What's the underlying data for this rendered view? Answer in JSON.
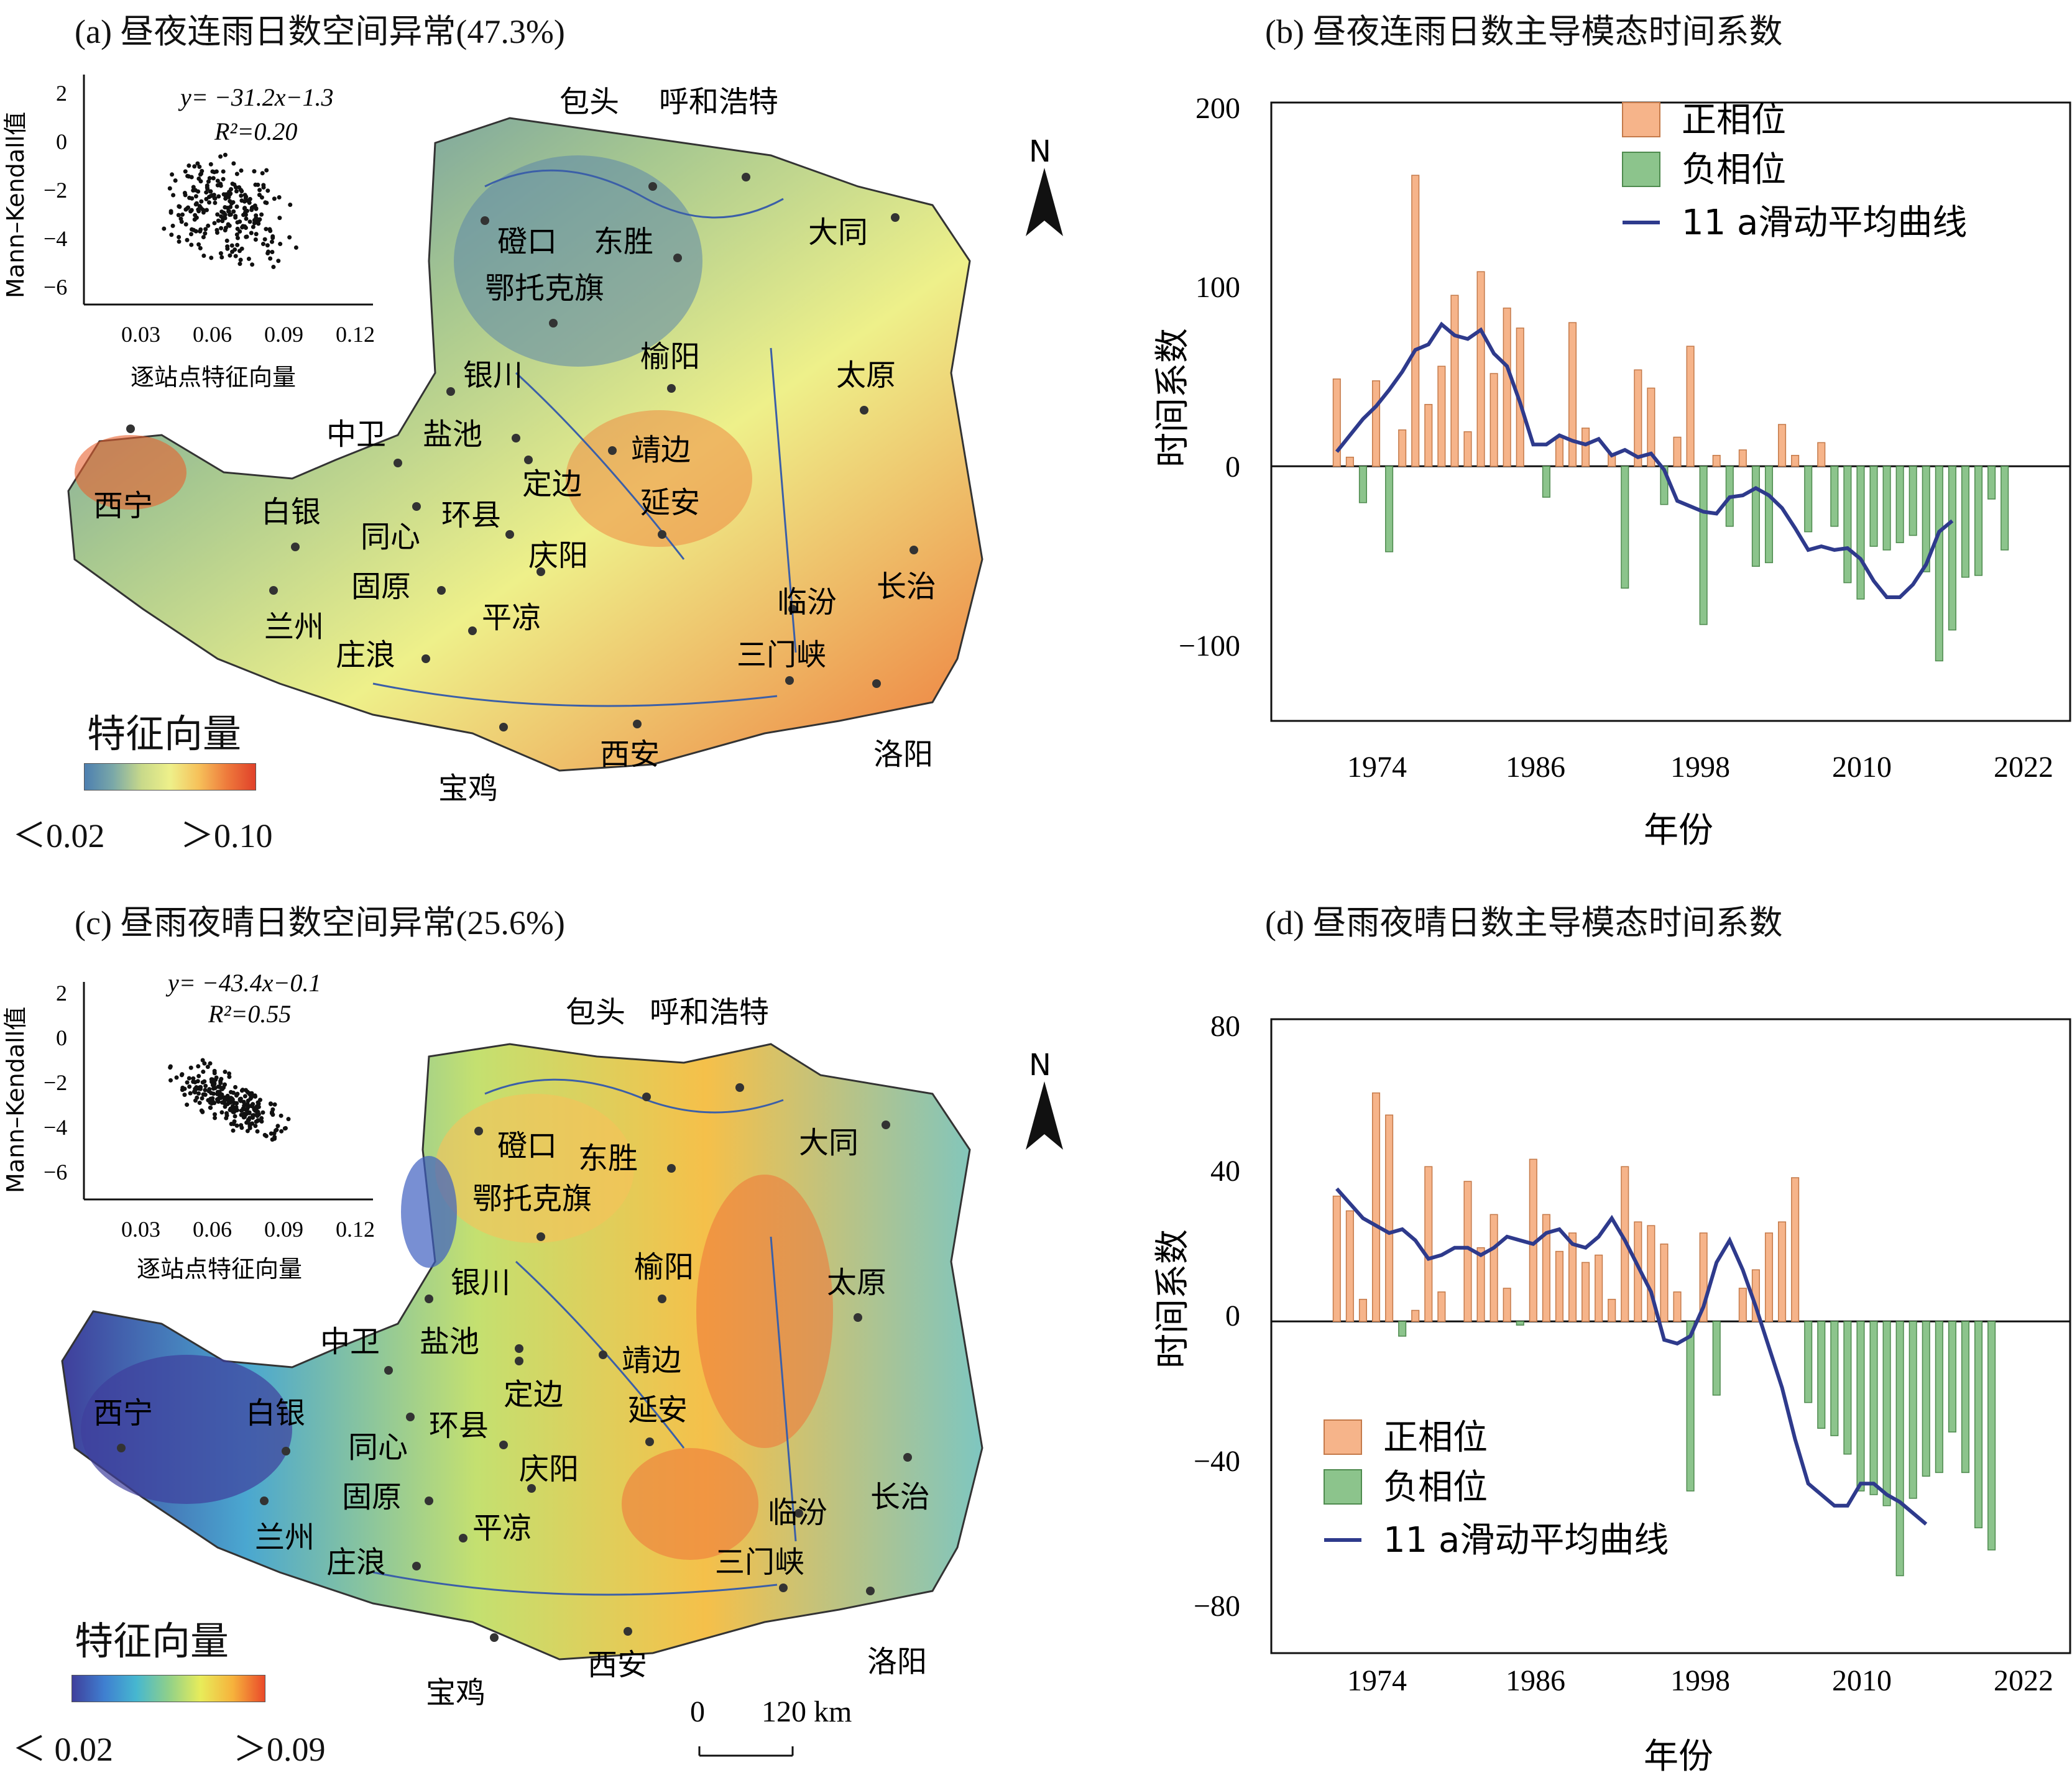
{
  "panels": {
    "a": {
      "title": "(a) 昼夜连雨日数空间异常(47.3%)",
      "colorbar": {
        "title": "特征向量",
        "min_label": "＜0.02",
        "max_label": "＞0.10",
        "colors": [
          "#4d7fb0",
          "#7aa8a8",
          "#c8d98a",
          "#eef08a",
          "#f6c15a",
          "#ee7a3c",
          "#e0412a"
        ]
      },
      "inset": {
        "equation": "y= −31.2x−1.3",
        "r2": "R²=0.20",
        "xlabel": "逐站点特征向量",
        "ylabel": "Mann–Kendall值",
        "xticks": [
          "0.03",
          "0.06",
          "0.09",
          "0.12"
        ],
        "yticks": [
          "2",
          "0",
          "−2",
          "−4",
          "−6"
        ]
      }
    },
    "b": {
      "title": "(b) 昼夜连雨日数主导模态时间系数",
      "xlabel": "年份",
      "ylabel": "时间系数",
      "legend": [
        "正相位",
        "负相位",
        "11 a滑动平均曲线"
      ],
      "yticks": [
        "200",
        "100",
        "0",
        "−100"
      ],
      "xticks": [
        "1974",
        "1986",
        "1998",
        "2010",
        "2022"
      ]
    },
    "c": {
      "title": "(c) 昼雨夜晴日数空间异常(25.6%)",
      "colorbar": {
        "title": "特征向量",
        "min_label": "＜ 0.02",
        "max_label": "＞0.09",
        "colors": [
          "#3f3f9c",
          "#3f7fd0",
          "#46b7d0",
          "#8fd08a",
          "#e8ec5a",
          "#f6b23c",
          "#ea4a2a"
        ]
      },
      "inset": {
        "equation": "y= −43.4x−0.1",
        "r2": "R²=0.55",
        "xlabel": "逐站点特征向量",
        "ylabel": "Mann–Kendall值",
        "xticks": [
          "0.03",
          "0.06",
          "0.09",
          "0.12"
        ],
        "yticks": [
          "2",
          "0",
          "−2",
          "−4",
          "−6"
        ]
      },
      "scale_bar": {
        "zero": "0",
        "label": "120 km"
      }
    },
    "d": {
      "title": "(d) 昼雨夜晴日数主导模态时间系数",
      "xlabel": "年份",
      "ylabel": "时间系数",
      "legend": [
        "正相位",
        "负相位",
        "11 a滑动平均曲线"
      ],
      "yticks": [
        "80",
        "40",
        "0",
        "−40",
        "−80"
      ],
      "xticks": [
        "1974",
        "1986",
        "1998",
        "2010",
        "2022"
      ]
    }
  },
  "north_label": "N",
  "cities": [
    "包头",
    "呼和浩特",
    "磴口",
    "东胜",
    "大同",
    "鄂托克旗",
    "银川",
    "榆阳",
    "太原",
    "中卫",
    "盐池",
    "靖边",
    "定边",
    "西宁",
    "白银",
    "同心",
    "环县",
    "延安",
    "庆阳",
    "长治",
    "固原",
    "兰州",
    "临汾",
    "平凉",
    "庄浪",
    "三门峡",
    "西安",
    "宝鸡",
    "洛阳"
  ],
  "chart_data": [
    {
      "type": "bar",
      "title": "(b) 昼夜连雨日数主导模态时间系数",
      "xlabel": "年份",
      "ylabel": "时间系数",
      "x": [
        1967,
        1968,
        1969,
        1970,
        1971,
        1972,
        1973,
        1974,
        1975,
        1976,
        1977,
        1978,
        1979,
        1980,
        1981,
        1982,
        1983,
        1984,
        1985,
        1986,
        1987,
        1988,
        1989,
        1990,
        1991,
        1992,
        1993,
        1994,
        1995,
        1996,
        1997,
        1998,
        1999,
        2000,
        2001,
        2002,
        2003,
        2004,
        2005,
        2006,
        2007,
        2008,
        2009,
        2010,
        2011,
        2012,
        2013,
        2014,
        2015,
        2016,
        2017,
        2018,
        2019,
        2020,
        2021
      ],
      "ylim": [
        -140,
        200
      ],
      "series": [
        {
          "name": "正相位",
          "color": "#f6b48a",
          "values": [
            48,
            5,
            0,
            47,
            0,
            20,
            160,
            34,
            55,
            94,
            19,
            107,
            51,
            87,
            76,
            0,
            0,
            16,
            79,
            21,
            0,
            7,
            0,
            53,
            43,
            0,
            16,
            66,
            0,
            6,
            0,
            9,
            0,
            0,
            23,
            6,
            0,
            13,
            0,
            0,
            0,
            0,
            0,
            0,
            0,
            0,
            0,
            0,
            0,
            0,
            0,
            0,
            0,
            0,
            0
          ]
        },
        {
          "name": "负相位",
          "color": "#8cc48c",
          "values": [
            0,
            0,
            -20,
            0,
            -47,
            0,
            0,
            0,
            0,
            0,
            0,
            0,
            0,
            0,
            0,
            0,
            -17,
            0,
            0,
            0,
            0,
            0,
            -67,
            0,
            0,
            -21,
            0,
            0,
            -87,
            0,
            -33,
            0,
            -55,
            -53,
            0,
            0,
            -36,
            0,
            -33,
            -64,
            -73,
            -44,
            -46,
            -42,
            -38,
            -58,
            -107,
            -90,
            -61,
            -60,
            -18,
            -46,
            0,
            0,
            0
          ]
        },
        {
          "name": "11 a滑动平均曲线",
          "color": "#2e3a8c",
          "values": [
            8,
            17,
            26,
            33,
            42,
            52,
            64,
            67,
            78,
            72,
            70,
            75,
            62,
            55,
            35,
            12,
            12,
            17,
            14,
            12,
            15,
            6,
            9,
            5,
            7,
            -2,
            -19,
            -22,
            -25,
            -26,
            -17,
            -16,
            -12,
            -16,
            -23,
            -34,
            -46,
            -44,
            -46,
            -45,
            -51,
            -63,
            -72,
            -72,
            -65,
            -54,
            -36,
            -30,
            null,
            null,
            null,
            null,
            null,
            null,
            null
          ]
        }
      ]
    },
    {
      "type": "bar",
      "title": "(d) 昼雨夜晴日数主导模态时间系数",
      "xlabel": "年份",
      "ylabel": "时间系数",
      "x": [
        1967,
        1968,
        1969,
        1970,
        1971,
        1972,
        1973,
        1974,
        1975,
        1976,
        1977,
        1978,
        1979,
        1980,
        1981,
        1982,
        1983,
        1984,
        1985,
        1986,
        1987,
        1988,
        1989,
        1990,
        1991,
        1992,
        1993,
        1994,
        1995,
        1996,
        1997,
        1998,
        1999,
        2000,
        2001,
        2002,
        2003,
        2004,
        2005,
        2006,
        2007,
        2008,
        2009,
        2010,
        2011,
        2012,
        2013,
        2014,
        2015,
        2016,
        2017,
        2018,
        2019,
        2020,
        2021
      ],
      "ylim": [
        -90,
        82
      ],
      "series": [
        {
          "name": "正相位",
          "color": "#f6b48a",
          "values": [
            34,
            30,
            6,
            62,
            56,
            0,
            3,
            42,
            8,
            0,
            38,
            20,
            29,
            9,
            0,
            44,
            29,
            19,
            24,
            16,
            18,
            6,
            42,
            27,
            26,
            21,
            8,
            0,
            24,
            0,
            0,
            9,
            14,
            24,
            27,
            39,
            0,
            0,
            0,
            0,
            0,
            0,
            0,
            0,
            0,
            0,
            0,
            0,
            0,
            0,
            0,
            0,
            0,
            0,
            0
          ]
        },
        {
          "name": "负相位",
          "color": "#8cc48c",
          "values": [
            0,
            0,
            0,
            0,
            0,
            -4,
            0,
            0,
            0,
            0,
            0,
            0,
            0,
            0,
            -1,
            0,
            0,
            0,
            0,
            0,
            0,
            0,
            0,
            0,
            0,
            0,
            0,
            -46,
            0,
            -20,
            0,
            0,
            0,
            0,
            0,
            0,
            -22,
            -29,
            -31,
            -36,
            -46,
            -47,
            -50,
            -69,
            -48,
            -42,
            -41,
            -30,
            -41,
            -56,
            -62,
            0,
            0,
            0,
            0
          ]
        },
        {
          "name": "11 a滑动平均曲线",
          "color": "#2e3a8c",
          "values": [
            36,
            32,
            28,
            26,
            24,
            25,
            22,
            17,
            18,
            20,
            20,
            18,
            20,
            23,
            22,
            21,
            24,
            25,
            21,
            20,
            23,
            28,
            22,
            15,
            8,
            -5,
            -6,
            -4,
            4,
            16,
            22,
            14,
            4,
            -7,
            -18,
            -32,
            -44,
            -47,
            -50,
            -50,
            -44,
            -44,
            -47,
            -49,
            -52,
            -55,
            null,
            null,
            null,
            null,
            null,
            null,
            null,
            null,
            null
          ]
        }
      ]
    },
    {
      "type": "scatter",
      "title": "",
      "xlabel": "逐站点特征向量",
      "ylabel": "Mann–Kendall值",
      "xlim": [
        0.0,
        0.13
      ],
      "ylim": [
        -7,
        2
      ],
      "fit": {
        "slope": -31.2,
        "intercept": -1.3,
        "r2": 0.2
      }
    },
    {
      "type": "scatter",
      "title": "",
      "xlabel": "逐站点特征向量",
      "ylabel": "Mann–Kendall值",
      "xlim": [
        0.0,
        0.13
      ],
      "ylim": [
        -7,
        2
      ],
      "fit": {
        "slope": -43.4,
        "intercept": -0.1,
        "r2": 0.55
      }
    }
  ]
}
